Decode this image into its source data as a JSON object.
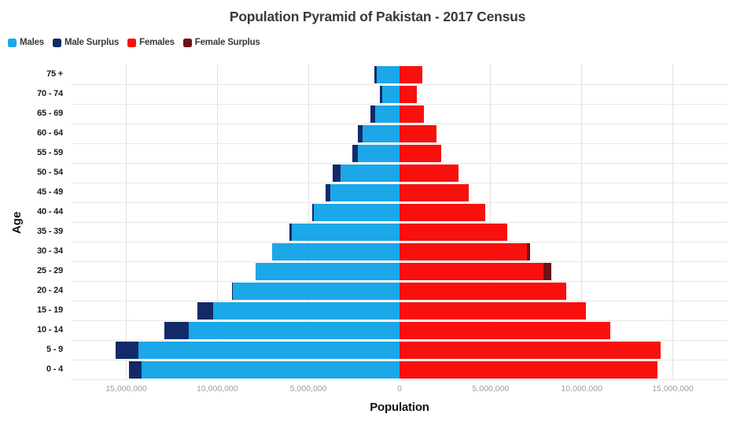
{
  "title": "Population Pyramid of Pakistan - 2017 Census",
  "legend": [
    {
      "label": "Males",
      "color": "#1ca7e8"
    },
    {
      "label": "Male Surplus",
      "color": "#132a68"
    },
    {
      "label": "Females",
      "color": "#f8100d"
    },
    {
      "label": "Female Surplus",
      "color": "#701114"
    }
  ],
  "colors": {
    "males": "#1ca7e8",
    "male_surplus": "#132a68",
    "females": "#f8100d",
    "female_surplus": "#701114",
    "gridline": "#e2e2e2",
    "center_line": "#d6d6d6"
  },
  "chart_data": {
    "type": "bar",
    "subtype": "population-pyramid",
    "title": "Population Pyramid of Pakistan - 2017 Census",
    "xlabel": "Population",
    "ylabel": "Age",
    "x_axis_max_each_side": 18000000,
    "grid": true,
    "legend_position": "top-left",
    "categories_top_to_bottom": [
      "75 +",
      "70 - 74",
      "65 - 69",
      "60 - 64",
      "55 - 59",
      "50 - 54",
      "45 - 49",
      "40 - 44",
      "35 - 39",
      "30 - 34",
      "25 - 29",
      "20 - 24",
      "15 - 19",
      "10 - 14",
      "5 - 9",
      "0 - 4"
    ],
    "series": [
      {
        "name": "Males",
        "values": [
          1380000,
          1100000,
          1600000,
          2300000,
          2600000,
          3650000,
          4050000,
          4800000,
          6050000,
          7000000,
          7900000,
          9200000,
          11100000,
          12900000,
          15600000,
          14850000
        ]
      },
      {
        "name": "Females",
        "values": [
          1250000,
          950000,
          1320000,
          2020000,
          2300000,
          3250000,
          3800000,
          4700000,
          5900000,
          7150000,
          8350000,
          9150000,
          10250000,
          11550000,
          14350000,
          14150000
        ]
      }
    ],
    "surplus_note": "Male Surplus = males - females (dark tip on left bars); Female Surplus = females - males (dark tip on right bars)",
    "x_ticks": [
      {
        "value": -15000000,
        "label": "15,000,000"
      },
      {
        "value": -10000000,
        "label": "10,000,000"
      },
      {
        "value": -5000000,
        "label": "5,000,000"
      },
      {
        "value": 0,
        "label": "0"
      },
      {
        "value": 5000000,
        "label": "5,000,000"
      },
      {
        "value": 10000000,
        "label": "10,000,000"
      },
      {
        "value": 15000000,
        "label": "15,000,000"
      }
    ]
  }
}
